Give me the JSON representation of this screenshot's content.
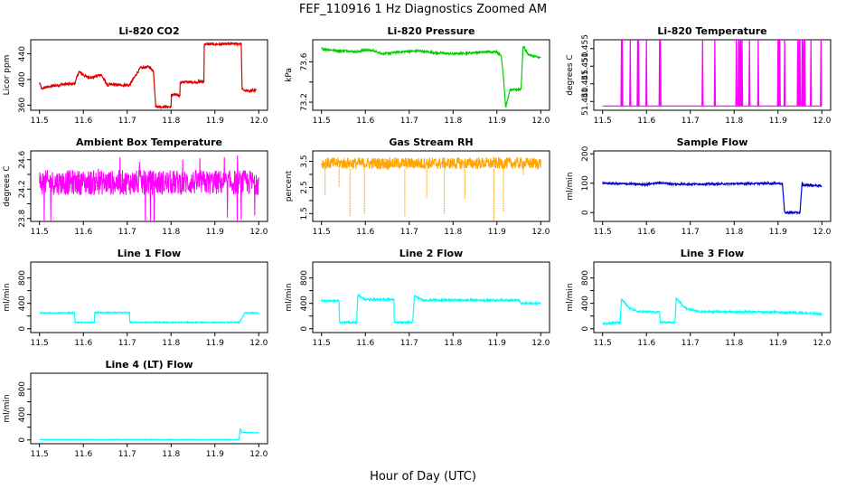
{
  "figure": {
    "title": "FEF_110916  1 Hz Diagnostics Zoomed AM",
    "xlabel": "Hour of Day (UTC)"
  },
  "chart_data": [
    {
      "id": "co2",
      "type": "line",
      "title": "Li-820 CO2",
      "ylabel": "Licor ppm",
      "color": "#e00000",
      "xlim": [
        11.5,
        12.0
      ],
      "ylim": [
        352,
        462
      ],
      "xticks": [
        "11.5",
        "11.6",
        "11.7",
        "11.8",
        "11.9",
        "12.0"
      ],
      "yticks": [
        360,
        400,
        440
      ],
      "noise": 2,
      "series": [
        {
          "x": [
            11.5,
            11.505,
            11.51,
            11.53,
            11.56,
            11.58,
            11.59,
            11.605,
            11.62,
            11.64,
            11.655,
            11.66,
            11.705,
            11.73,
            11.75,
            11.76,
            11.765,
            11.8,
            11.8,
            11.81,
            11.82,
            11.82,
            11.86,
            11.875,
            11.875,
            11.92,
            11.96,
            11.962,
            11.97,
            11.995
          ],
          "y": [
            395,
            385,
            387,
            390,
            393,
            393,
            412,
            405,
            403,
            408,
            391,
            392,
            391,
            418,
            420,
            413,
            358,
            357,
            376,
            376,
            375,
            396,
            396,
            397,
            455,
            455,
            456,
            385,
            382,
            383
          ]
        }
      ]
    },
    {
      "id": "pressure",
      "type": "line",
      "title": "Li-820 Pressure",
      "ylabel": "kPa",
      "color": "#00cc00",
      "xlim": [
        11.5,
        12.0
      ],
      "ylim": [
        73.12,
        73.82
      ],
      "xticks": [
        "11.5",
        "11.6",
        "11.7",
        "11.8",
        "11.9",
        "12.0"
      ],
      "yticks": [
        73.2,
        73.4,
        73.6
      ],
      "yticklabels": [
        "73.2",
        "",
        "73.6"
      ],
      "noise": 0.01,
      "series": [
        {
          "x": [
            11.5,
            11.52,
            11.54,
            11.56,
            11.58,
            11.6,
            11.62,
            11.64,
            11.68,
            11.72,
            11.76,
            11.8,
            11.84,
            11.88,
            11.9,
            11.91,
            11.915,
            11.92,
            11.93,
            11.955,
            11.957,
            11.96,
            11.965,
            11.97,
            11.98,
            12.0
          ],
          "y": [
            73.73,
            73.72,
            73.71,
            73.71,
            73.7,
            73.72,
            73.71,
            73.68,
            73.7,
            73.71,
            73.69,
            73.68,
            73.69,
            73.7,
            73.7,
            73.66,
            73.45,
            73.15,
            73.32,
            73.33,
            73.52,
            73.76,
            73.72,
            73.68,
            73.66,
            73.64
          ]
        }
      ]
    },
    {
      "id": "temp",
      "type": "line",
      "title": "Li-820 Temperature",
      "ylabel": "degrees C",
      "color": "#ff00ff",
      "xlim": [
        11.5,
        12.0
      ],
      "ylim": [
        51.4375,
        51.4575
      ],
      "xticks": [
        "11.5",
        "11.6",
        "11.7",
        "11.8",
        "11.9",
        "12.0"
      ],
      "yticks": [
        51.44,
        51.445,
        51.45,
        51.455
      ],
      "yticklabels": [
        "51.440",
        "51.445",
        "51.450",
        "51.455"
      ],
      "baseline": 51.4387,
      "spike_level": 51.4583,
      "spikes": [
        11.543,
        11.545,
        11.563,
        11.58,
        11.582,
        11.6,
        11.63,
        11.632,
        11.728,
        11.756,
        11.805,
        11.81,
        11.812,
        11.815,
        11.818,
        11.835,
        11.855,
        11.9,
        11.902,
        11.904,
        11.915,
        11.945,
        11.948,
        11.95,
        11.955,
        11.958,
        11.961,
        11.975,
        11.998
      ]
    },
    {
      "id": "ambient",
      "type": "line",
      "title": "Ambient Box Temperature",
      "ylabel": "degrees C",
      "color": "#ff00ff",
      "xlim": [
        11.5,
        12.0
      ],
      "ylim": [
        23.76,
        24.72
      ],
      "xticks": [
        "11.5",
        "11.6",
        "11.7",
        "11.8",
        "11.9",
        "12.0"
      ],
      "yticks": [
        23.8,
        24.0,
        24.2,
        24.4,
        24.6
      ],
      "yticklabels": [
        "23.8",
        "",
        "24.2",
        "",
        "24.6"
      ],
      "band": [
        24.12,
        24.46
      ],
      "outliers": [
        23.85,
        24.68
      ]
    },
    {
      "id": "rh",
      "type": "line",
      "title": "Gas Stream RH",
      "ylabel": "percent",
      "color": "#ffa500",
      "xlim": [
        11.5,
        12.0
      ],
      "ylim": [
        1.2,
        3.9
      ],
      "xticks": [
        "11.5",
        "11.6",
        "11.7",
        "11.8",
        "11.9",
        "12.0"
      ],
      "yticks": [
        1.5,
        2.0,
        2.5,
        3.0,
        3.5
      ],
      "yticklabels": [
        "1.5",
        "",
        "2.5",
        "",
        "3.5"
      ],
      "band": [
        3.2,
        3.65
      ],
      "dips": [
        {
          "x": 11.508,
          "y": 2.2
        },
        {
          "x": 11.54,
          "y": 2.5
        },
        {
          "x": 11.565,
          "y": 1.4
        },
        {
          "x": 11.598,
          "y": 1.5
        },
        {
          "x": 11.69,
          "y": 1.4
        },
        {
          "x": 11.74,
          "y": 2.1
        },
        {
          "x": 11.78,
          "y": 1.5
        },
        {
          "x": 11.827,
          "y": 2.05
        },
        {
          "x": 11.893,
          "y": 1.25
        },
        {
          "x": 11.915,
          "y": 1.55
        },
        {
          "x": 11.96,
          "y": 3.0
        }
      ]
    },
    {
      "id": "sample",
      "type": "line",
      "title": "Sample Flow",
      "ylabel": "ml/min",
      "color": "#0000cc",
      "xlim": [
        11.5,
        12.0
      ],
      "ylim": [
        -30,
        210
      ],
      "xticks": [
        "11.5",
        "11.6",
        "11.7",
        "11.8",
        "11.9",
        "12.0"
      ],
      "yticks": [
        0,
        100,
        200
      ],
      "noise": 3,
      "series": [
        {
          "x": [
            11.5,
            11.55,
            11.6,
            11.63,
            11.66,
            11.7,
            11.8,
            11.9,
            11.91,
            11.915,
            11.95,
            11.955,
            11.958,
            11.97,
            11.99,
            12.0
          ],
          "y": [
            100,
            98,
            96,
            102,
            97,
            97,
            98,
            100,
            98,
            0,
            0,
            100,
            92,
            94,
            92,
            90
          ]
        }
      ]
    },
    {
      "id": "line1",
      "type": "line",
      "title": "Line 1 Flow",
      "ylabel": "ml/min",
      "color": "#00ffff",
      "xlim": [
        11.5,
        12.0
      ],
      "ylim": [
        -60,
        1050
      ],
      "xticks": [
        "11.5",
        "11.6",
        "11.7",
        "11.8",
        "11.9",
        "12.0"
      ],
      "yticks": [
        0,
        200,
        400,
        600,
        800
      ],
      "yticklabels": [
        "0",
        "",
        "400",
        "",
        "800"
      ],
      "noise": 8,
      "series": [
        {
          "x": [
            11.5,
            11.58,
            11.581,
            11.625,
            11.626,
            11.705,
            11.706,
            11.955,
            11.962,
            11.968,
            12.0
          ],
          "y": [
            250,
            250,
            100,
            100,
            255,
            255,
            100,
            100,
            165,
            250,
            250
          ]
        }
      ]
    },
    {
      "id": "line2",
      "type": "line",
      "title": "Line 2 Flow",
      "ylabel": "ml/min",
      "color": "#00ffff",
      "xlim": [
        11.5,
        12.0
      ],
      "ylim": [
        -60,
        1050
      ],
      "xticks": [
        "11.5",
        "11.6",
        "11.7",
        "11.8",
        "11.9",
        "12.0"
      ],
      "yticks": [
        0,
        200,
        400,
        600,
        800
      ],
      "yticklabels": [
        "0",
        "",
        "400",
        "",
        "800"
      ],
      "noise": 14,
      "series": [
        {
          "x": [
            11.5,
            11.54,
            11.541,
            11.58,
            11.583,
            11.6,
            11.665,
            11.666,
            11.708,
            11.712,
            11.73,
            11.95,
            11.955,
            12.0
          ],
          "y": [
            440,
            440,
            100,
            100,
            530,
            460,
            460,
            100,
            100,
            520,
            450,
            450,
            400,
            400
          ]
        }
      ]
    },
    {
      "id": "line3",
      "type": "line",
      "title": "Line 3 Flow",
      "ylabel": "ml/min",
      "color": "#00ffff",
      "xlim": [
        11.5,
        12.0
      ],
      "ylim": [
        -60,
        1050
      ],
      "xticks": [
        "11.5",
        "11.6",
        "11.7",
        "11.8",
        "11.9",
        "12.0"
      ],
      "yticks": [
        0,
        200,
        400,
        600,
        800
      ],
      "yticklabels": [
        "0",
        "",
        "400",
        "",
        "800"
      ],
      "noise": 14,
      "series": [
        {
          "x": [
            11.5,
            11.54,
            11.543,
            11.56,
            11.58,
            11.63,
            11.631,
            11.665,
            11.668,
            11.69,
            11.72,
            11.9,
            11.92,
            11.93,
            12.0
          ],
          "y": [
            80,
            100,
            470,
            330,
            270,
            260,
            100,
            100,
            480,
            320,
            270,
            260,
            250,
            260,
            230
          ]
        }
      ]
    },
    {
      "id": "line4",
      "type": "line",
      "title": "Line 4 (LT) Flow",
      "ylabel": "ml/min",
      "color": "#00ffff",
      "xlim": [
        11.5,
        12.0
      ],
      "ylim": [
        -60,
        1050
      ],
      "xticks": [
        "11.5",
        "11.6",
        "11.7",
        "11.8",
        "11.9",
        "12.0"
      ],
      "yticks": [
        0,
        200,
        400,
        600,
        800
      ],
      "yticklabels": [
        "0",
        "",
        "400",
        "",
        "800"
      ],
      "noise": 3,
      "series": [
        {
          "x": [
            11.5,
            11.6,
            11.7,
            11.8,
            11.9,
            11.955,
            11.958,
            11.962,
            11.97,
            12.0
          ],
          "y": [
            5,
            5,
            5,
            5,
            5,
            5,
            180,
            120,
            115,
            115
          ]
        }
      ]
    }
  ]
}
